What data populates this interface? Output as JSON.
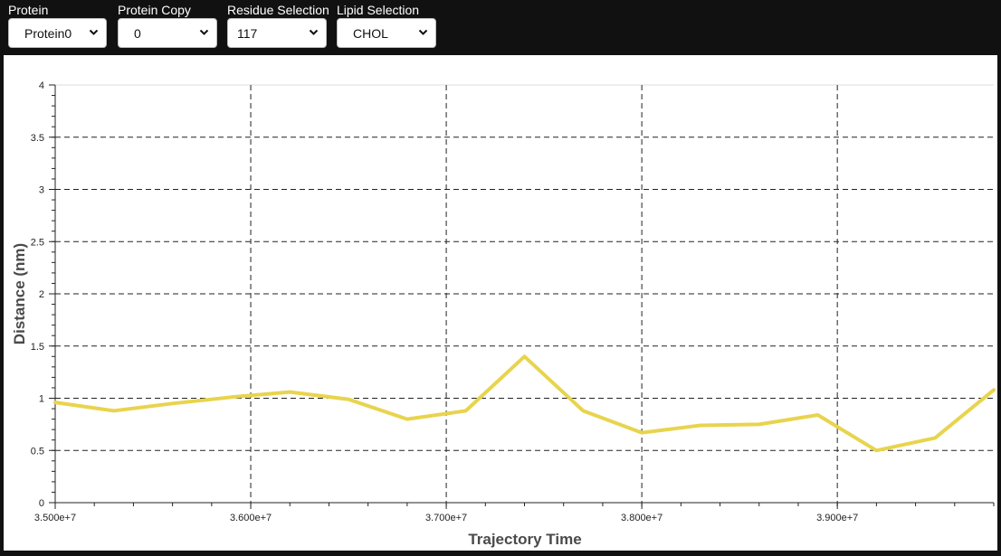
{
  "controls": [
    {
      "label": "Protein",
      "value": "Protein0"
    },
    {
      "label": "Protein Copy",
      "value": "0"
    },
    {
      "label": "Residue Selection",
      "value": "117"
    },
    {
      "label": "Lipid Selection",
      "value": "CHOL"
    }
  ],
  "chart_data": {
    "type": "line",
    "title": "",
    "xlabel": "Trajectory Time",
    "ylabel": "Distance (nm)",
    "xlim": [
      35000000,
      39800000
    ],
    "ylim": [
      0,
      4
    ],
    "x_tick_labels": [
      "3.500e+7",
      "3.600e+7",
      "3.700e+7",
      "3.800e+7",
      "3.900e+7"
    ],
    "y_tick_labels": [
      "0",
      "0.5",
      "1",
      "1.5",
      "2",
      "2.5",
      "3",
      "3.5",
      "4"
    ],
    "grid": true,
    "series": [
      {
        "color": "#e8d44d",
        "x": [
          35000000,
          35300000,
          35600000,
          35900000,
          36200000,
          36500000,
          36800000,
          37100000,
          37400000,
          37700000,
          38000000,
          38300000,
          38600000,
          38900000,
          39200000,
          39500000,
          39800000
        ],
        "y": [
          0.96,
          0.88,
          0.95,
          1.01,
          1.06,
          0.99,
          0.8,
          0.88,
          1.4,
          0.88,
          0.67,
          0.74,
          0.75,
          0.84,
          0.5,
          0.62,
          1.08
        ]
      }
    ]
  }
}
